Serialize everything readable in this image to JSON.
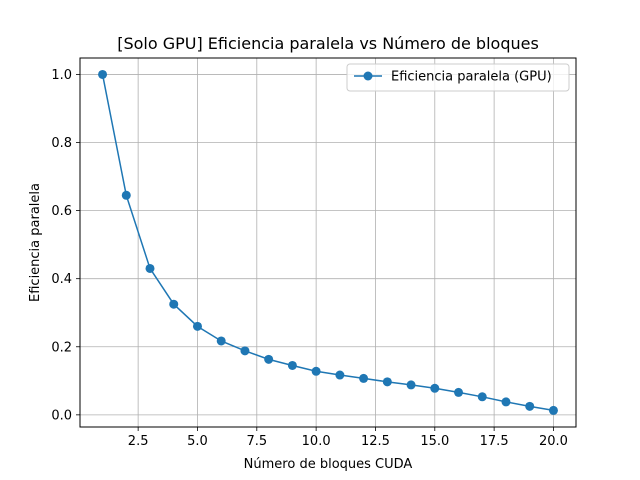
{
  "chart_data": {
    "type": "line",
    "title": "[Solo GPU] Eficiencia paralela vs Número de bloques",
    "xlabel": "Número de bloques CUDA",
    "ylabel": "Eficiencia paralela",
    "xlim": [
      0.05,
      20.95
    ],
    "ylim": [
      -0.0357,
      1.0483
    ],
    "x_ticks": [
      2.5,
      5.0,
      7.5,
      10.0,
      12.5,
      15.0,
      17.5,
      20.0
    ],
    "x_tick_labels": [
      "2.5",
      "5.0",
      "7.5",
      "10.0",
      "12.5",
      "15.0",
      "17.5",
      "20.0"
    ],
    "y_ticks": [
      0.0,
      0.2,
      0.4,
      0.6,
      0.8,
      1.0
    ],
    "y_tick_labels": [
      "0.0",
      "0.2",
      "0.4",
      "0.6",
      "0.8",
      "1.0"
    ],
    "grid": true,
    "legend_position": "top-right",
    "series": [
      {
        "name": "Eficiencia paralela (GPU)",
        "color": "#1f77b4",
        "marker": "circle",
        "x": [
          1,
          2,
          3,
          4,
          5,
          6,
          7,
          8,
          9,
          10,
          11,
          12,
          13,
          14,
          15,
          16,
          17,
          18,
          19,
          20
        ],
        "y": [
          1.0,
          0.645,
          0.43,
          0.325,
          0.26,
          0.217,
          0.188,
          0.163,
          0.145,
          0.128,
          0.117,
          0.107,
          0.097,
          0.088,
          0.078,
          0.066,
          0.053,
          0.038,
          0.025,
          0.013
        ]
      }
    ]
  }
}
